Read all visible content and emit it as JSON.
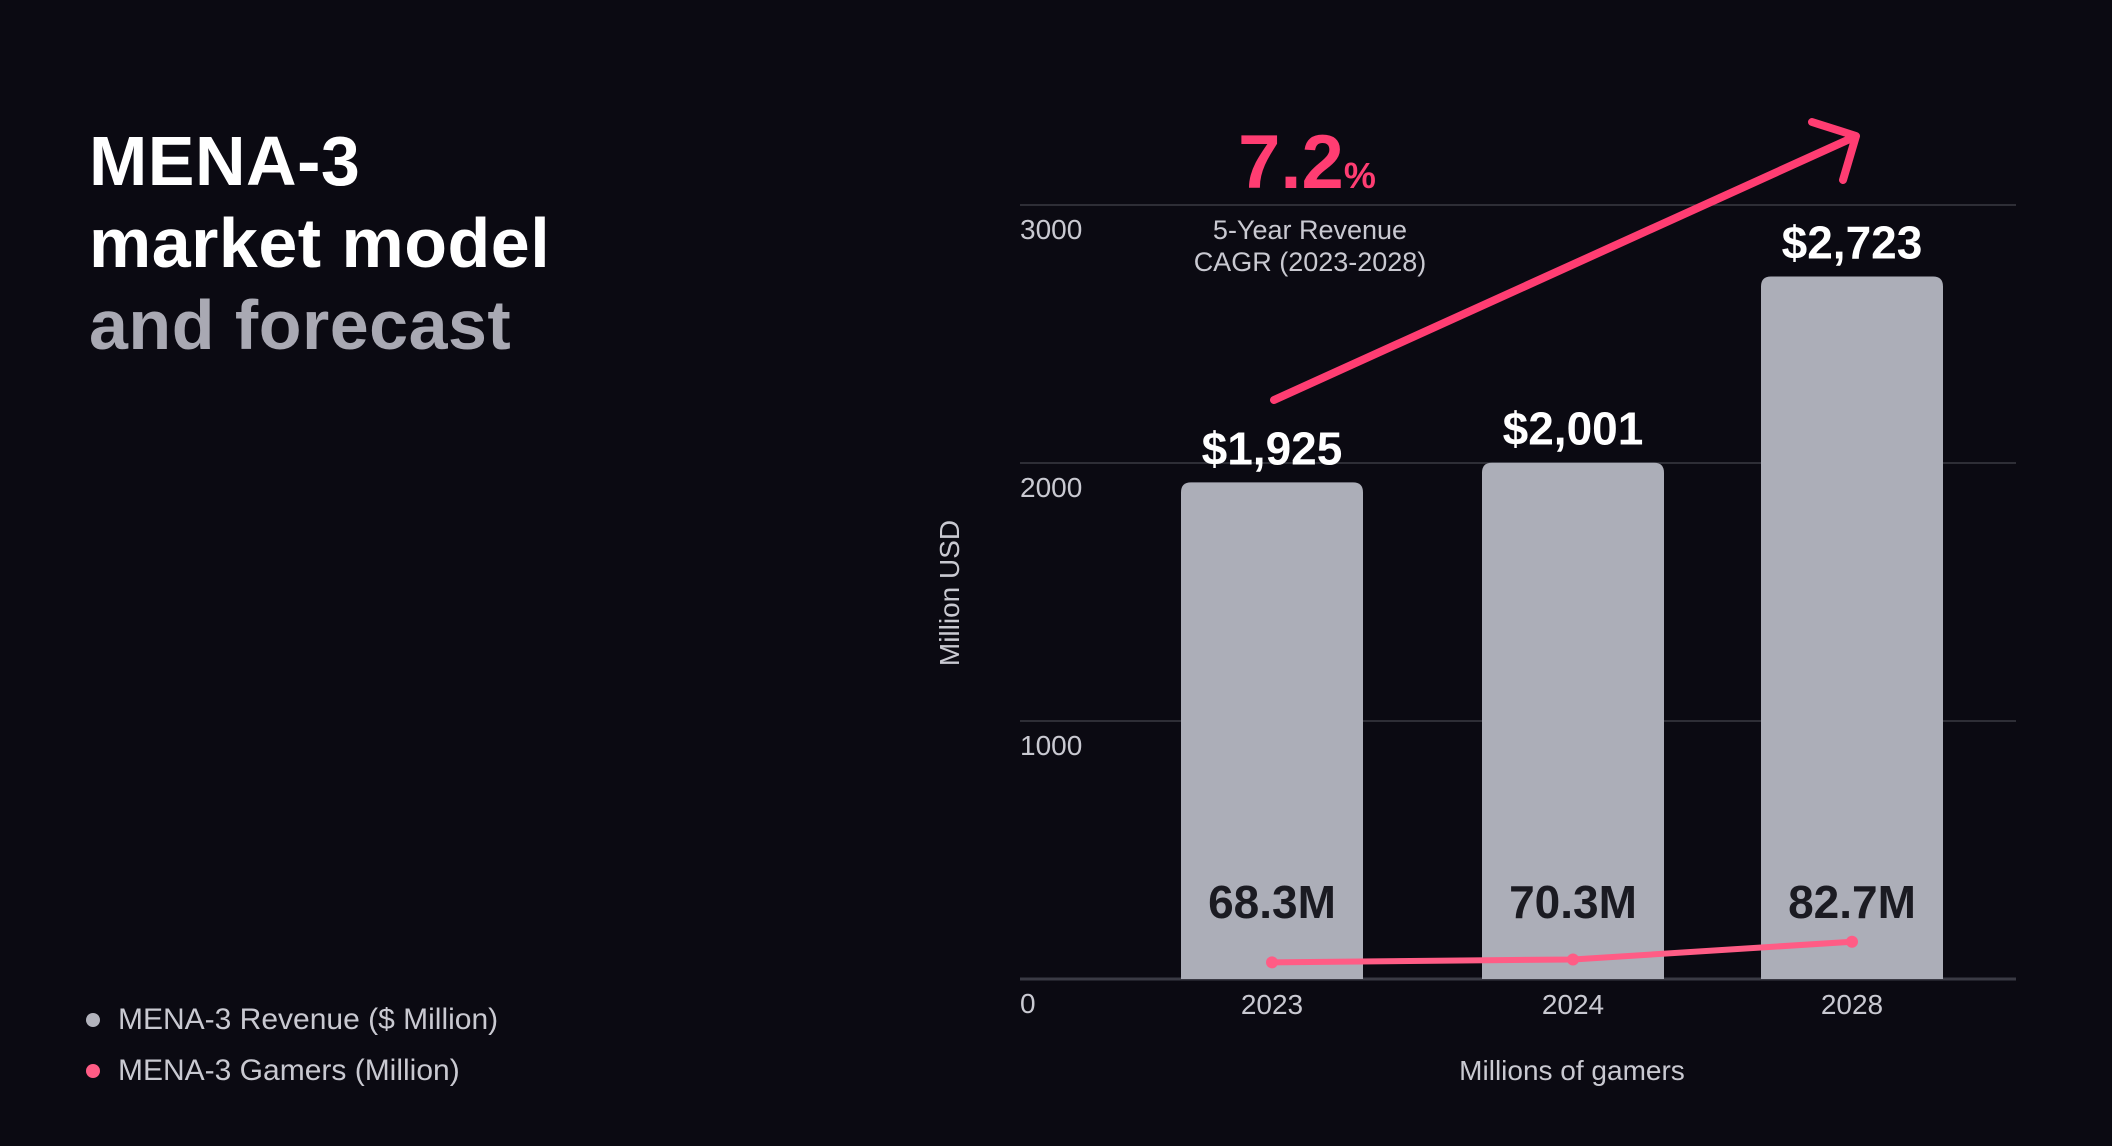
{
  "title": {
    "line1": "MENA-3",
    "line2": "market model",
    "line3": "and forecast"
  },
  "legend": [
    {
      "label": "MENA-3 Revenue ($ Million)",
      "color": "#b3b4bd"
    },
    {
      "label": "MENA-3 Gamers (Million)",
      "color": "#ff5c85"
    }
  ],
  "chart_data": {
    "type": "bar",
    "categories": [
      "2023",
      "2024",
      "2028"
    ],
    "series": [
      {
        "name": "MENA-3 Revenue ($ Million)",
        "type": "bar",
        "values": [
          1925,
          2001,
          2723
        ],
        "labels": [
          "$1,925",
          "$2,001",
          "$2,723"
        ],
        "color": "#acaeb8"
      },
      {
        "name": "MENA-3 Gamers (Million)",
        "type": "line",
        "values": [
          68.3,
          70.3,
          82.7
        ],
        "labels": [
          "68.3M",
          "70.3M",
          "82.7M"
        ],
        "color": "#ff5c85"
      }
    ],
    "ylabel": "Million USD",
    "xlabel": "Millions of gamers",
    "ylim": [
      0,
      3000
    ],
    "yticks": [
      "0",
      "1000",
      "2000",
      "3000"
    ],
    "grid": true,
    "annotation": {
      "value": "7.2",
      "unit": "%",
      "line1": "5-Year Revenue",
      "line2": "CAGR (2023-2028)",
      "color": "#ff3d72"
    }
  }
}
